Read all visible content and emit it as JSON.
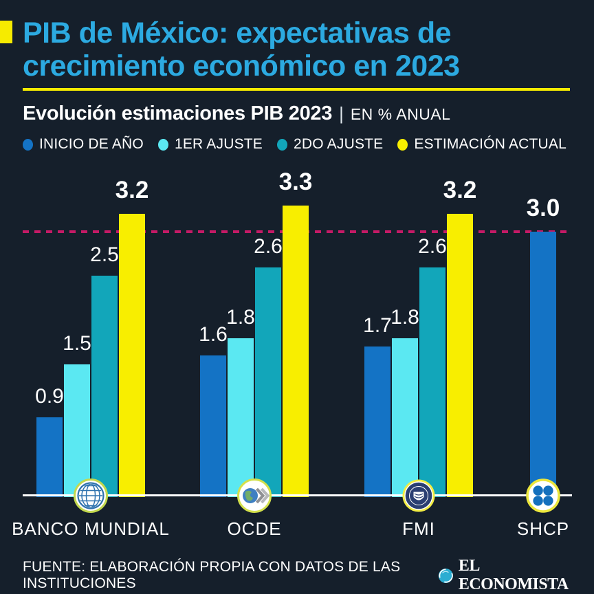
{
  "header": {
    "title_line1": "PIB de México: expectativas de",
    "title_line2": "crecimiento económico en 2023",
    "subtitle": "Evolución estimaciones PIB 2023",
    "subtitle_separator": "|",
    "subtitle_unit": "EN % ANUAL"
  },
  "colors": {
    "background": "#151f2b",
    "accent_yellow": "#f6eb00",
    "title_blue": "#2caae1",
    "reference_line": "#c41a66",
    "baseline": "#ffffff"
  },
  "chart_data": {
    "type": "bar",
    "title": "Evolución estimaciones PIB 2023",
    "unit": "EN % ANUAL",
    "reference_line_value": 3.0,
    "ylim": [
      0,
      3.45
    ],
    "legend_position": "top",
    "grid": false,
    "series": [
      {
        "key": "inicio",
        "label": "INICIO DE AÑO",
        "color": "#1473c5"
      },
      {
        "key": "ajuste1",
        "label": "1ER AJUSTE",
        "color": "#5be8f2"
      },
      {
        "key": "ajuste2",
        "label": "2DO AJUSTE",
        "color": "#12a6ba"
      },
      {
        "key": "actual",
        "label": "ESTIMACIÓN ACTUAL",
        "color": "#f8ee00"
      }
    ],
    "groups": [
      {
        "name": "BANCO MUNDIAL",
        "icon": "banco-mundial-logo",
        "bars": [
          {
            "series": "inicio",
            "value": 0.9
          },
          {
            "series": "ajuste1",
            "value": 1.5
          },
          {
            "series": "ajuste2",
            "value": 2.5
          },
          {
            "series": "actual",
            "value": 3.2,
            "emphasis": true
          }
        ]
      },
      {
        "name": "OCDE",
        "icon": "ocde-logo",
        "bars": [
          {
            "series": "inicio",
            "value": 1.6
          },
          {
            "series": "ajuste1",
            "value": 1.8
          },
          {
            "series": "ajuste2",
            "value": 2.6
          },
          {
            "series": "actual",
            "value": 3.3,
            "emphasis": true
          }
        ]
      },
      {
        "name": "FMI",
        "icon": "fmi-logo",
        "bars": [
          {
            "series": "inicio",
            "value": 1.7
          },
          {
            "series": "ajuste1",
            "value": 1.8
          },
          {
            "series": "ajuste2",
            "value": 2.6
          },
          {
            "series": "actual",
            "value": 3.2,
            "emphasis": true
          }
        ]
      },
      {
        "name": "SHCP",
        "icon": "shcp-logo",
        "bars": [
          {
            "series": "inicio",
            "value": 3.0,
            "emphasis": true
          }
        ]
      }
    ]
  },
  "footer": {
    "source": "FUENTE: ELABORACIÓN PROPIA CON DATOS DE LAS INSTITUCIONES",
    "brand": "EL ECONOMISTA"
  }
}
